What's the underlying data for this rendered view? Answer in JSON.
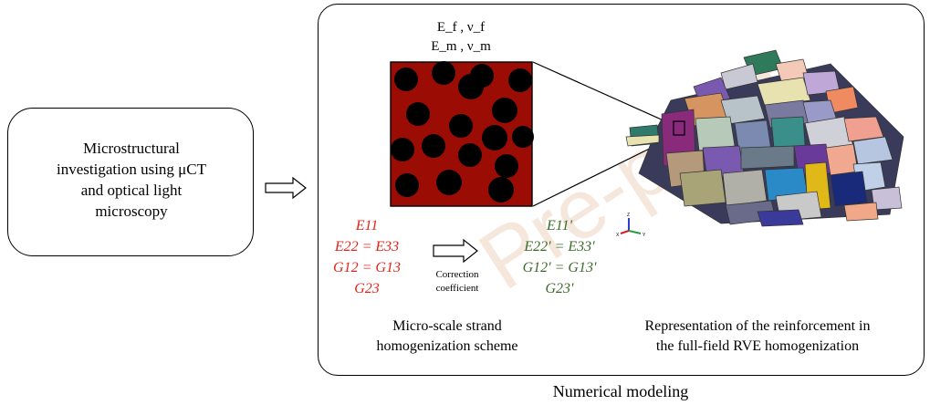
{
  "left_box": {
    "lines": [
      "Microstructural",
      "investigation using μCT",
      "and optical light",
      "microscopy"
    ]
  },
  "main_panel": {
    "caption": "Numerical modeling",
    "properties": {
      "fiber": "E_f , ν_f",
      "matrix": "E_m , ν_m"
    },
    "input_stiffness": [
      "E11",
      "E22 = E33",
      "G12 = G13",
      "G23"
    ],
    "correction": [
      "Correction",
      "coefficient"
    ],
    "corrected_stiffness": [
      "E11'",
      "E22' = E33'",
      "G12' = G13'",
      "G23'"
    ],
    "micro_caption": [
      "Micro-scale strand",
      "homogenization scheme"
    ],
    "rve_caption": [
      "Representation of the reinforcement in",
      "the full-field RVE homogenization"
    ],
    "axes": {
      "x": "X",
      "y": "Y",
      "z": "Z"
    }
  },
  "watermark": "Pre-proof",
  "colors": {
    "matrix_red": "#9b0d04",
    "fiber_black": "#000000",
    "input_red": "#e0261b",
    "output_green": "#3c6b2a"
  }
}
